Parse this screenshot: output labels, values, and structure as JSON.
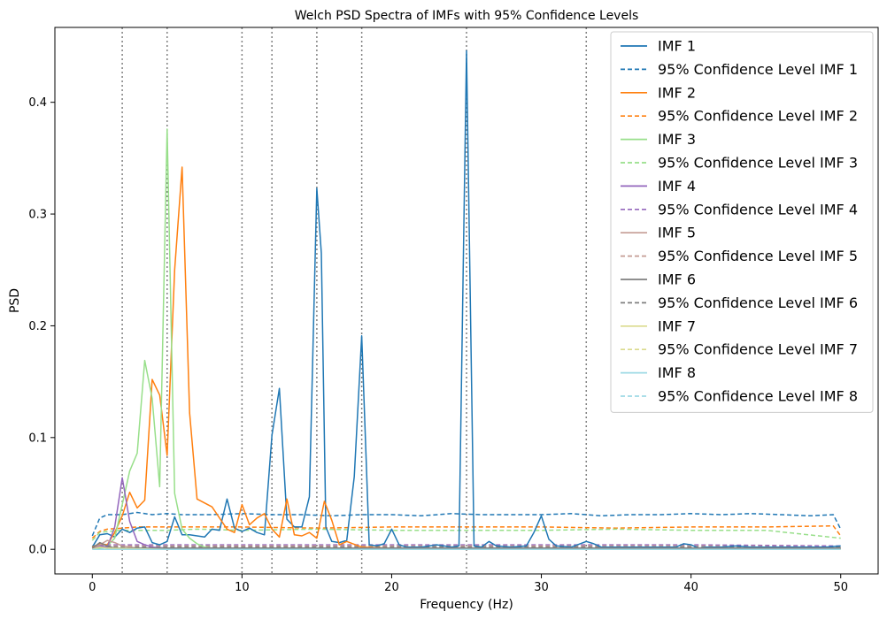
{
  "chart_data": {
    "type": "line",
    "title": "Welch PSD Spectra of IMFs with 95% Confidence Levels",
    "xlabel": "Frequency (Hz)",
    "ylabel": "PSD",
    "xlim": [
      -2.5,
      52.5
    ],
    "ylim": [
      -0.022,
      0.467
    ],
    "xticks": [
      0,
      10,
      20,
      30,
      40,
      50
    ],
    "yticks": [
      0.0,
      0.1,
      0.2,
      0.3,
      0.4
    ],
    "vlines": [
      2,
      5,
      10,
      12,
      15,
      18,
      25,
      33
    ],
    "grid": false,
    "legend_position": "top-right",
    "series": [
      {
        "name": "IMF 1",
        "color": "#1f77b4",
        "style": "solid",
        "x": [
          0,
          0.5,
          1,
          1.5,
          2,
          2.5,
          3,
          3.5,
          4,
          4.5,
          5,
          5.5,
          6,
          6.5,
          7,
          7.5,
          8,
          8.5,
          9,
          9.5,
          10,
          10.5,
          11,
          11.5,
          12,
          12.5,
          13,
          13.5,
          14,
          14.5,
          15,
          15.3,
          15.6,
          16,
          16.5,
          17,
          17.5,
          18,
          18.5,
          19,
          19.5,
          20,
          20.5,
          21,
          22,
          23,
          24,
          24.5,
          25,
          25.5,
          26,
          26.5,
          27,
          28,
          29,
          29.5,
          30,
          30.5,
          31,
          32,
          33,
          33.5,
          34,
          35,
          36,
          37,
          38,
          39,
          39.5,
          40,
          40.5,
          41,
          42,
          43,
          44,
          45,
          46,
          47,
          48,
          49,
          50
        ],
        "y": [
          0.002,
          0.013,
          0.014,
          0.011,
          0.018,
          0.015,
          0.019,
          0.02,
          0.006,
          0.004,
          0.007,
          0.029,
          0.013,
          0.013,
          0.012,
          0.011,
          0.018,
          0.017,
          0.045,
          0.019,
          0.016,
          0.019,
          0.015,
          0.013,
          0.102,
          0.144,
          0.027,
          0.02,
          0.02,
          0.047,
          0.323,
          0.265,
          0.02,
          0.007,
          0.006,
          0.008,
          0.065,
          0.191,
          0.004,
          0.003,
          0.005,
          0.018,
          0.004,
          0.002,
          0.002,
          0.004,
          0.002,
          0.003,
          0.446,
          0.003,
          0.002,
          0.007,
          0.003,
          0.002,
          0.003,
          0.015,
          0.03,
          0.009,
          0.003,
          0.002,
          0.007,
          0.005,
          0.002,
          0.002,
          0.002,
          0.002,
          0.002,
          0.002,
          0.005,
          0.004,
          0.001,
          0.002,
          0.002,
          0.003,
          0.002,
          0.002,
          0.002,
          0.002,
          0.002,
          0.002,
          0.003
        ]
      },
      {
        "name": "95% Confidence Level IMF 1",
        "color": "#1f77b4",
        "style": "dashed",
        "x": [
          0,
          0.5,
          1,
          2,
          3,
          4,
          5,
          6,
          8,
          10,
          12,
          14,
          16,
          18,
          20,
          22,
          24,
          26,
          28,
          30,
          32,
          34,
          36,
          38,
          40,
          42,
          44,
          46,
          48,
          49.5,
          50
        ],
        "y": [
          0.012,
          0.028,
          0.031,
          0.031,
          0.033,
          0.031,
          0.032,
          0.031,
          0.031,
          0.032,
          0.031,
          0.031,
          0.03,
          0.031,
          0.031,
          0.03,
          0.032,
          0.031,
          0.031,
          0.031,
          0.032,
          0.03,
          0.031,
          0.031,
          0.032,
          0.031,
          0.032,
          0.031,
          0.03,
          0.031,
          0.018
        ]
      },
      {
        "name": "IMF 2",
        "color": "#ff7f0e",
        "style": "solid",
        "x": [
          0,
          0.5,
          1,
          1.5,
          2,
          2.5,
          3,
          3.5,
          4,
          4.5,
          5,
          5.5,
          6,
          6.5,
          7,
          8,
          9,
          9.5,
          10,
          10.5,
          11,
          11.5,
          12,
          12.5,
          13,
          13.5,
          14,
          14.5,
          15,
          15.5,
          16,
          16.5,
          17,
          18,
          20,
          25,
          30,
          40,
          50
        ],
        "y": [
          0.002,
          0.005,
          0.004,
          0.015,
          0.03,
          0.051,
          0.037,
          0.044,
          0.152,
          0.138,
          0.084,
          0.25,
          0.342,
          0.122,
          0.045,
          0.038,
          0.018,
          0.015,
          0.04,
          0.022,
          0.028,
          0.032,
          0.018,
          0.011,
          0.045,
          0.013,
          0.012,
          0.015,
          0.01,
          0.043,
          0.026,
          0.004,
          0.007,
          0.002,
          0.001,
          0.001,
          0.001,
          0.001,
          0.001
        ]
      },
      {
        "name": "95% Confidence Level IMF 2",
        "color": "#ff7f0e",
        "style": "dashed",
        "x": [
          0,
          0.5,
          1,
          2,
          3,
          5,
          7,
          10,
          15,
          20,
          25,
          30,
          35,
          40,
          45,
          49.5,
          50
        ],
        "y": [
          0.01,
          0.016,
          0.018,
          0.019,
          0.02,
          0.02,
          0.02,
          0.02,
          0.019,
          0.02,
          0.02,
          0.02,
          0.019,
          0.02,
          0.02,
          0.021,
          0.012
        ]
      },
      {
        "name": "IMF 3",
        "color": "#98df8a",
        "style": "solid",
        "x": [
          0,
          0.5,
          1,
          1.5,
          2,
          2.5,
          3,
          3.5,
          4,
          4.5,
          5,
          5.5,
          6,
          6.5,
          7,
          7.5,
          8,
          9,
          10,
          15,
          20,
          30,
          40,
          50
        ],
        "y": [
          0.001,
          0.001,
          0.003,
          0.01,
          0.04,
          0.07,
          0.086,
          0.169,
          0.135,
          0.056,
          0.376,
          0.05,
          0.018,
          0.01,
          0.005,
          0.002,
          0.001,
          0.001,
          0.001,
          0.001,
          0.001,
          0.001,
          0.001,
          0.001
        ]
      },
      {
        "name": "95% Confidence Level IMF 3",
        "color": "#98df8a",
        "style": "dashed",
        "x": [
          0,
          0.5,
          1,
          2,
          3,
          5,
          7,
          10,
          15,
          20,
          25,
          30,
          35,
          40,
          45,
          50
        ],
        "y": [
          0.008,
          0.015,
          0.016,
          0.017,
          0.017,
          0.017,
          0.018,
          0.017,
          0.018,
          0.017,
          0.017,
          0.017,
          0.018,
          0.017,
          0.017,
          0.01
        ]
      },
      {
        "name": "IMF 4",
        "color": "#9467bd",
        "style": "solid",
        "x": [
          0,
          0.5,
          1,
          1.5,
          2,
          2.5,
          3,
          3.5,
          4,
          5,
          10,
          20,
          30,
          40,
          50
        ],
        "y": [
          0.001,
          0.003,
          0.002,
          0.02,
          0.064,
          0.025,
          0.007,
          0.004,
          0.002,
          0.001,
          0.001,
          0.001,
          0.001,
          0.001,
          0.001
        ]
      },
      {
        "name": "95% Confidence Level IMF 4",
        "color": "#9467bd",
        "style": "dashed",
        "x": [
          0,
          1,
          2,
          5,
          10,
          20,
          30,
          40,
          50
        ],
        "y": [
          0.003,
          0.004,
          0.004,
          0.004,
          0.004,
          0.004,
          0.004,
          0.004,
          0.003
        ]
      },
      {
        "name": "IMF 5",
        "color": "#c49c94",
        "style": "solid",
        "x": [
          0,
          0.5,
          1,
          1.5,
          2,
          3,
          5,
          10,
          20,
          30,
          40,
          50
        ],
        "y": [
          0.001,
          0.004,
          0.008,
          0.006,
          0.003,
          0.001,
          0.001,
          0.001,
          0.001,
          0.001,
          0.001,
          0.001
        ]
      },
      {
        "name": "95% Confidence Level IMF 5",
        "color": "#c49c94",
        "style": "dashed",
        "x": [
          0,
          1,
          5,
          10,
          20,
          30,
          40,
          50
        ],
        "y": [
          0.003,
          0.003,
          0.003,
          0.003,
          0.003,
          0.003,
          0.003,
          0.002
        ]
      },
      {
        "name": "IMF 6",
        "color": "#7f7f7f",
        "style": "solid",
        "x": [
          0,
          0.5,
          1,
          1.5,
          2,
          5,
          10,
          20,
          30,
          40,
          50
        ],
        "y": [
          0.001,
          0.006,
          0.003,
          0.001,
          0.001,
          0.001,
          0.001,
          0.001,
          0.001,
          0.001,
          0.001
        ]
      },
      {
        "name": "95% Confidence Level IMF 6",
        "color": "#7f7f7f",
        "style": "dashed",
        "x": [
          0,
          1,
          10,
          20,
          30,
          40,
          50
        ],
        "y": [
          0.002,
          0.002,
          0.002,
          0.002,
          0.002,
          0.002,
          0.002
        ]
      },
      {
        "name": "IMF 7",
        "color": "#dbdb8d",
        "style": "solid",
        "x": [
          0,
          0.5,
          1,
          5,
          10,
          20,
          30,
          40,
          50
        ],
        "y": [
          0.0,
          0.002,
          0.001,
          0.0,
          0.0,
          0.0,
          0.0,
          0.0,
          0.0
        ]
      },
      {
        "name": "95% Confidence Level IMF 7",
        "color": "#dbdb8d",
        "style": "dashed",
        "x": [
          0,
          1,
          10,
          20,
          30,
          40,
          50
        ],
        "y": [
          0.001,
          0.001,
          0.001,
          0.001,
          0.001,
          0.001,
          0.001
        ]
      },
      {
        "name": "IMF 8",
        "color": "#9edae5",
        "style": "solid",
        "x": [
          0,
          1,
          5,
          10,
          20,
          30,
          40,
          50
        ],
        "y": [
          0.0,
          0.0,
          0.0,
          0.0,
          0.0,
          0.0,
          0.0,
          0.0
        ]
      },
      {
        "name": "95% Confidence Level IMF 8",
        "color": "#9edae5",
        "style": "dashed",
        "x": [
          0,
          1,
          10,
          20,
          30,
          40,
          50
        ],
        "y": [
          0.0005,
          0.0005,
          0.0005,
          0.0005,
          0.0005,
          0.0005,
          0.0005
        ]
      }
    ]
  }
}
